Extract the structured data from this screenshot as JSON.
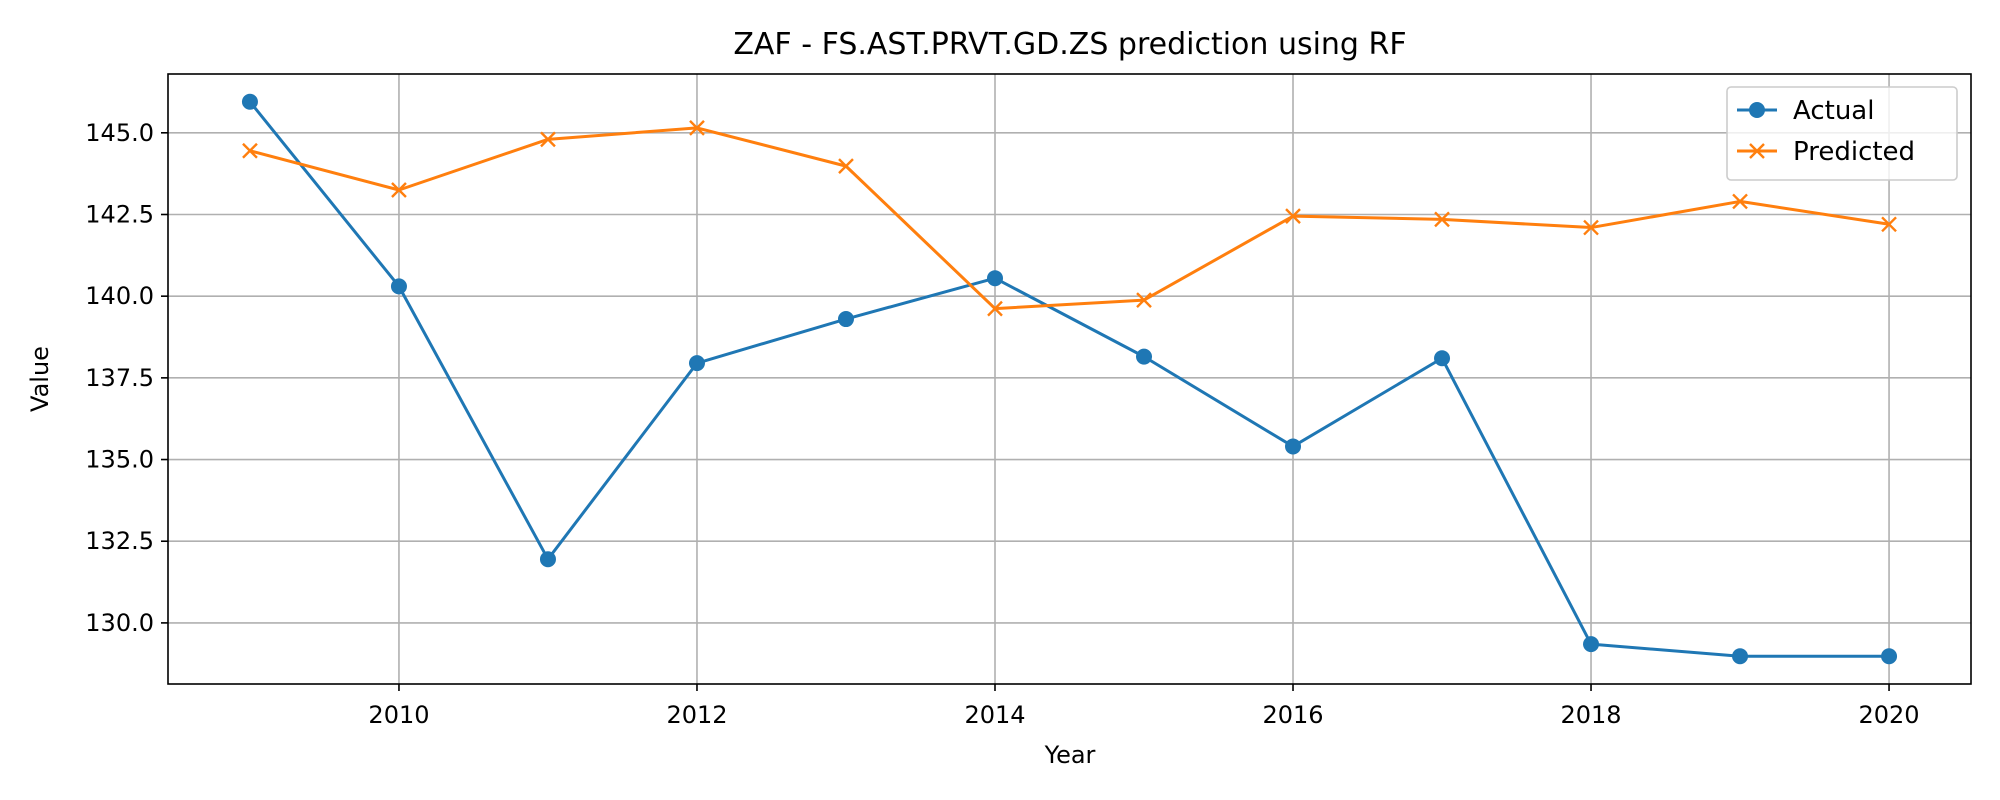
{
  "chart_data": {
    "type": "line",
    "title": "ZAF - FS.AST.PRVT.GD.ZS prediction using RF",
    "xlabel": "Year",
    "ylabel": "Value",
    "x": [
      2009,
      2010,
      2011,
      2012,
      2013,
      2014,
      2015,
      2016,
      2017,
      2018,
      2019,
      2020
    ],
    "series": [
      {
        "name": "Actual",
        "color": "#1f77b4",
        "marker": "circle",
        "values": [
          145.95,
          140.3,
          131.95,
          137.95,
          139.3,
          140.55,
          138.15,
          135.4,
          138.1,
          129.35,
          128.98,
          128.98
        ]
      },
      {
        "name": "Predicted",
        "color": "#ff7f0e",
        "marker": "x",
        "values": [
          144.45,
          143.25,
          144.8,
          145.15,
          143.98,
          139.62,
          139.88,
          142.45,
          142.35,
          142.1,
          142.9,
          142.2
        ]
      }
    ],
    "xticks": [
      2010,
      2012,
      2014,
      2016,
      2018,
      2020
    ],
    "xtick_labels": [
      "2010",
      "2012",
      "2014",
      "2016",
      "2018",
      "2020"
    ],
    "yticks": [
      130.0,
      132.5,
      135.0,
      137.5,
      140.0,
      142.5,
      145.0
    ],
    "ytick_labels": [
      "130.0",
      "132.5",
      "135.0",
      "137.5",
      "140.0",
      "142.5",
      "145.0"
    ],
    "xlim": [
      2008.45,
      2020.55
    ],
    "ylim": [
      128.13,
      146.8
    ],
    "grid": true,
    "legend_position": "top-right"
  }
}
